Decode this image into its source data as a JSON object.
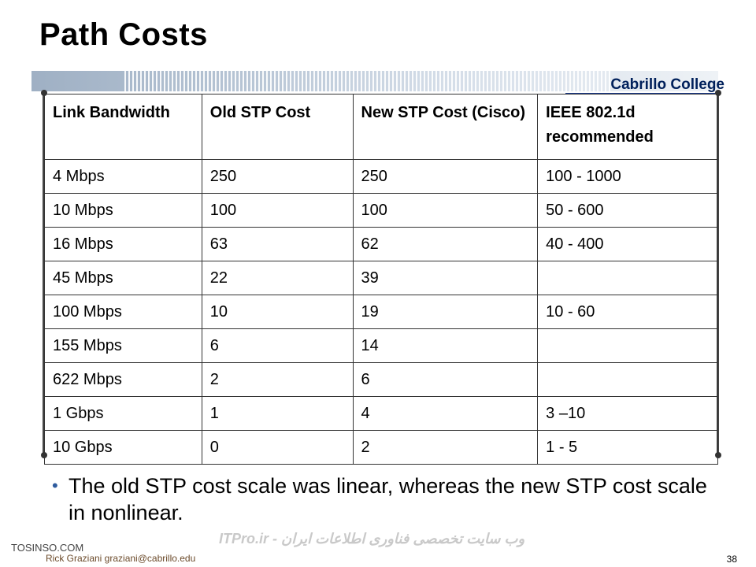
{
  "slide": {
    "title": "Path Costs",
    "brand": "Cabrillo College",
    "bullet": "The old STP cost scale was linear, whereas the new STP cost scale in nonlinear.",
    "footer_site": "TOSINSO.COM",
    "footer_author": "Rick Graziani  graziani@cabrillo.edu",
    "footer_watermark": "ITPro.ir - وب سایت تخصصی فناوری اطلاعات ایران",
    "page_number": "38"
  },
  "table": {
    "headers": [
      "Link Bandwidth",
      "Old STP Cost",
      "New STP Cost (Cisco)",
      "IEEE 802.1d recommended"
    ],
    "rows": [
      [
        "4 Mbps",
        "250",
        "250",
        "100 - 1000"
      ],
      [
        "10 Mbps",
        "100",
        "100",
        "50 - 600"
      ],
      [
        "16 Mbps",
        "63",
        "62",
        "40 - 400"
      ],
      [
        "45 Mbps",
        "22",
        "39",
        ""
      ],
      [
        "100 Mbps",
        "10",
        "19",
        "10 - 60"
      ],
      [
        "155 Mbps",
        "6",
        "14",
        ""
      ],
      [
        "622 Mbps",
        "2",
        "6",
        ""
      ],
      [
        "1 Gbps",
        "1",
        "4",
        "3 –10"
      ],
      [
        "10 Gbps",
        "0",
        "2",
        "1 - 5"
      ]
    ]
  }
}
